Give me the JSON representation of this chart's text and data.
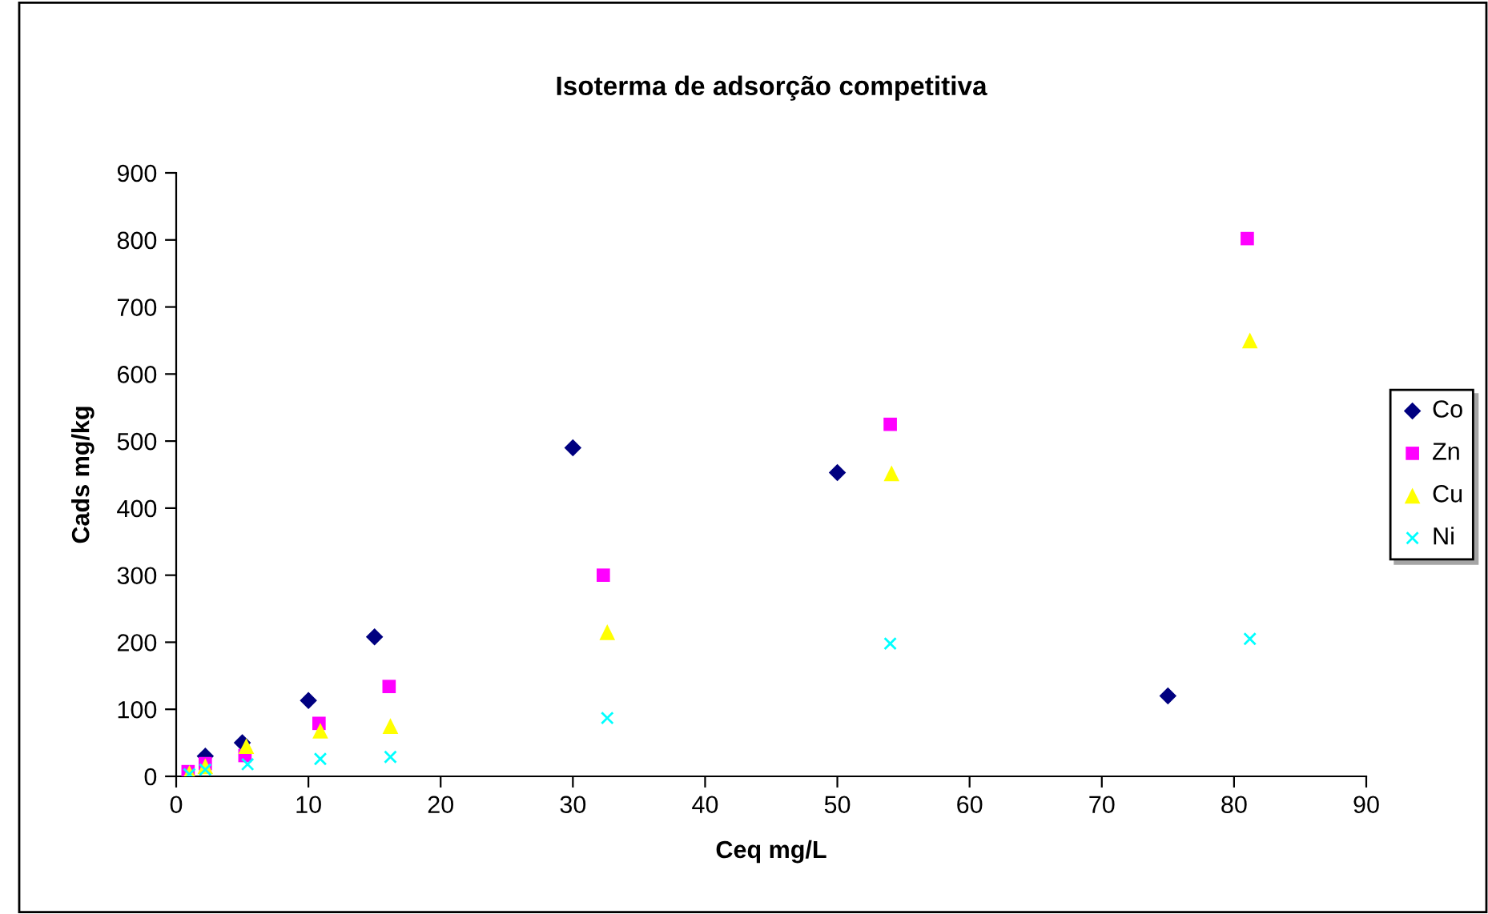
{
  "chart_data": {
    "type": "scatter",
    "title": "Isoterma de adsorção competitiva",
    "xlabel": "Ceq mg/L",
    "ylabel": "Cads mg/kg",
    "xlim": [
      0,
      90
    ],
    "xticks": [
      0,
      10,
      20,
      30,
      40,
      50,
      60,
      70,
      80,
      90
    ],
    "ylim": [
      0,
      900
    ],
    "yticks": [
      0,
      100,
      200,
      300,
      400,
      500,
      600,
      700,
      800,
      900
    ],
    "grid": false,
    "legend": "right",
    "series": [
      {
        "name": "Co",
        "color": "#000080",
        "marker": "diamond",
        "x": [
          2.2,
          5.0,
          10.0,
          15.0,
          30.0,
          50.0,
          75.0
        ],
        "values": [
          30,
          50,
          113,
          208,
          490,
          453,
          120
        ]
      },
      {
        "name": "Zn",
        "color": "#ff00ff",
        "marker": "square",
        "x": [
          0.9,
          2.2,
          5.2,
          10.8,
          16.1,
          32.3,
          54.0,
          81.0
        ],
        "values": [
          7,
          19,
          31,
          79,
          134,
          300,
          525,
          802
        ]
      },
      {
        "name": "Cu",
        "color": "#ffff00",
        "marker": "triangle",
        "x": [
          1.0,
          2.2,
          5.3,
          10.9,
          16.2,
          32.6,
          54.1,
          81.2
        ],
        "values": [
          5,
          15,
          45,
          68,
          75,
          215,
          452,
          650
        ]
      },
      {
        "name": "Ni",
        "color": "#00ffff",
        "marker": "cross",
        "x": [
          1.0,
          2.2,
          5.4,
          10.9,
          16.2,
          32.6,
          54.0,
          81.2
        ],
        "values": [
          3,
          10,
          18,
          26,
          29,
          87,
          198,
          205
        ]
      }
    ]
  }
}
